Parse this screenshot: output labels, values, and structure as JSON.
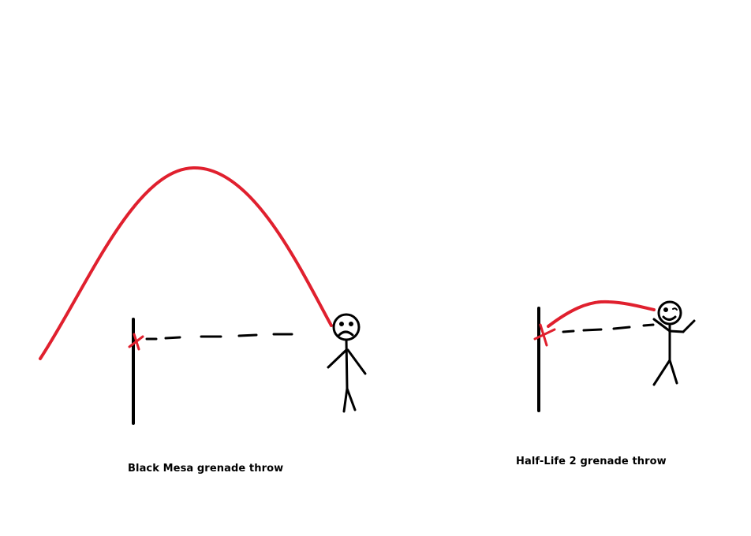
{
  "colors": {
    "trajectory": "#e0202e",
    "ink": "#000000",
    "background": "#ffffff"
  },
  "scenes": {
    "black_mesa": {
      "caption": "Black Mesa grenade throw",
      "face": "sad"
    },
    "half_life_2": {
      "caption": "Half-Life 2 grenade throw",
      "face": "happy"
    }
  }
}
